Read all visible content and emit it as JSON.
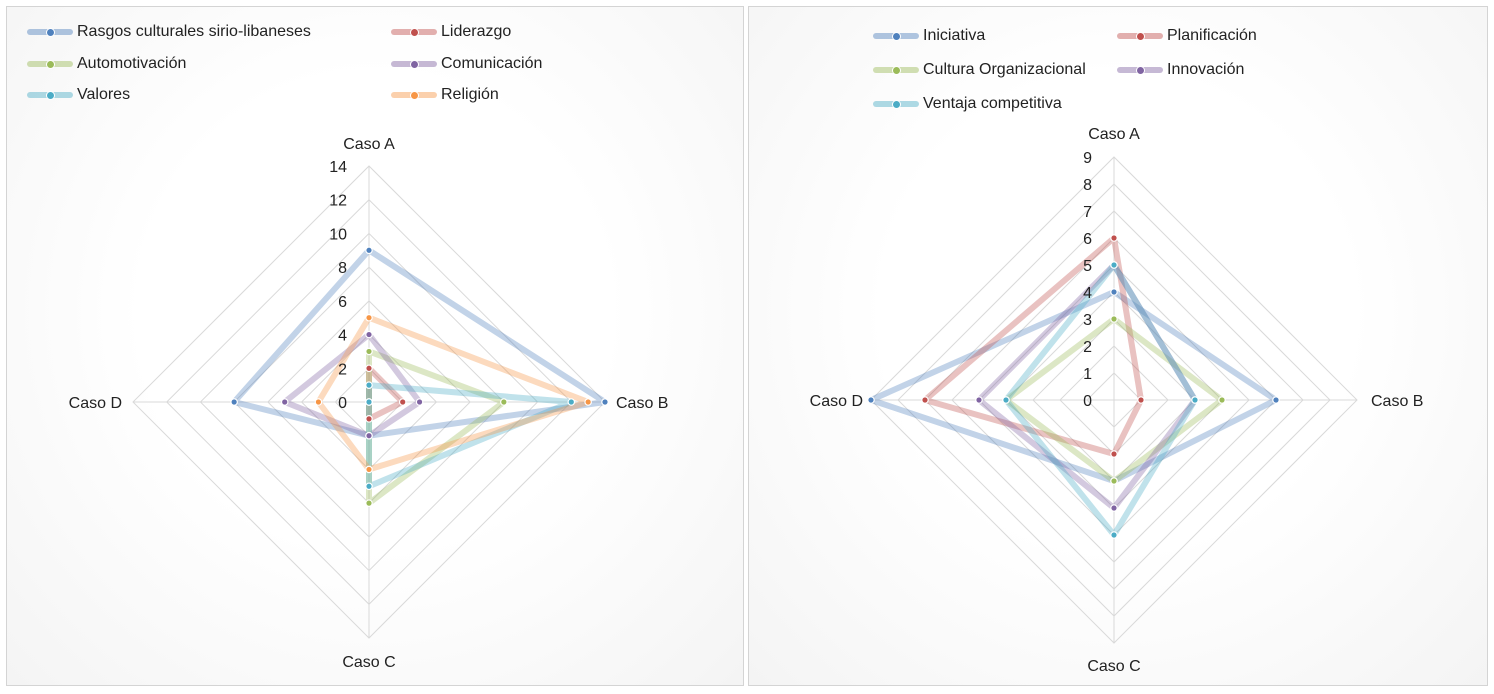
{
  "chart_data": [
    {
      "type": "radar",
      "axes": [
        "Caso A",
        "Caso  B",
        "Caso C",
        "Caso D"
      ],
      "ylim": [
        0,
        14
      ],
      "ticks": [
        "0",
        "2",
        "4",
        "6",
        "8",
        "10",
        "12",
        "14"
      ],
      "series": [
        {
          "name": "Rasgos culturales sirio-libaneses",
          "color": "#4f81bd",
          "values": [
            9,
            14,
            2,
            8
          ]
        },
        {
          "name": "Liderazgo",
          "color": "#c0504d",
          "values": [
            2,
            2,
            1,
            0
          ]
        },
        {
          "name": "Automotivación",
          "color": "#9bbb59",
          "values": [
            3,
            8,
            6,
            0
          ]
        },
        {
          "name": "Comunicación",
          "color": "#8064a2",
          "values": [
            4,
            3,
            2,
            5
          ]
        },
        {
          "name": "Valores",
          "color": "#4bacc6",
          "values": [
            1,
            12,
            5,
            0
          ]
        },
        {
          "name": "Religión",
          "color": "#f79646",
          "values": [
            5,
            13,
            4,
            3
          ]
        }
      ]
    },
    {
      "type": "radar",
      "axes": [
        "Caso A",
        "Caso  B",
        "Caso C",
        "Caso D"
      ],
      "ylim": [
        0,
        9
      ],
      "ticks": [
        "0",
        "1",
        "2",
        "3",
        "4",
        "5",
        "6",
        "7",
        "8",
        "9"
      ],
      "series": [
        {
          "name": "Iniciativa",
          "color": "#4f81bd",
          "values": [
            4,
            6,
            3,
            9
          ]
        },
        {
          "name": "Planificación",
          "color": "#c0504d",
          "values": [
            6,
            1,
            2,
            7
          ]
        },
        {
          "name": "Cultura Organizacional",
          "color": "#9bbb59",
          "values": [
            3,
            4,
            3,
            4
          ]
        },
        {
          "name": "Innovación",
          "color": "#8064a2",
          "values": [
            5,
            3,
            4,
            5
          ]
        },
        {
          "name": "Ventaja competitiva",
          "color": "#4bacc6",
          "values": [
            5,
            3,
            5,
            4
          ]
        }
      ]
    }
  ]
}
